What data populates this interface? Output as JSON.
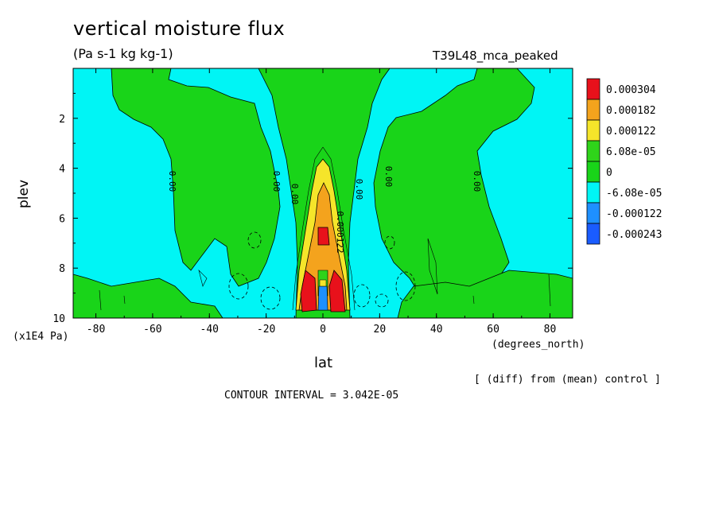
{
  "chart_data": {
    "type": "contour",
    "title": "vertical moisture flux",
    "units": "(Pa s-1 kg kg-1)",
    "run_label": "T39L48_mca_peaked",
    "xlabel": "lat",
    "x_units": "(degrees_north)",
    "ylabel": "plev",
    "y_units": "(x1E4 Pa)",
    "xlim": [
      -88,
      88
    ],
    "ylim": [
      10,
      0
    ],
    "x_ticks": [
      "-80",
      "-60",
      "-40",
      "-20",
      "0",
      "20",
      "40",
      "60",
      "80"
    ],
    "y_ticks": [
      "2",
      "4",
      "6",
      "8",
      "10"
    ],
    "legend": {
      "placement": "right",
      "levels": [
        "0.000304",
        "0.000182",
        "0.000122",
        "6.08e-05",
        "0",
        "-6.08e-05",
        "-0.000122",
        "-0.000243"
      ],
      "colors": [
        "#e8111b",
        "#f4a31d",
        "#f5e52a",
        "#2fd41a",
        "#19d419",
        "#00f5f5",
        "#1e90ff",
        "#1a5cff"
      ]
    },
    "contour_labels": [
      "0.00",
      "0.00",
      "0.00",
      "0.00",
      "0.00",
      "0.00",
      "0.00",
      "0.00",
      "0.00",
      "0.00"
    ],
    "inline_label": "0.000122",
    "note": "[ (diff) from (mean) control ]",
    "contour_interval": "CONTOUR INTERVAL = 3.042E-05"
  },
  "colors": {
    "cyan": "#00f5f5",
    "green": "#19d419",
    "yellow": "#f5e52a",
    "orange": "#f4a31d",
    "red": "#e8111b",
    "blue": "#1e90ff",
    "darkblue": "#1a5cff"
  }
}
